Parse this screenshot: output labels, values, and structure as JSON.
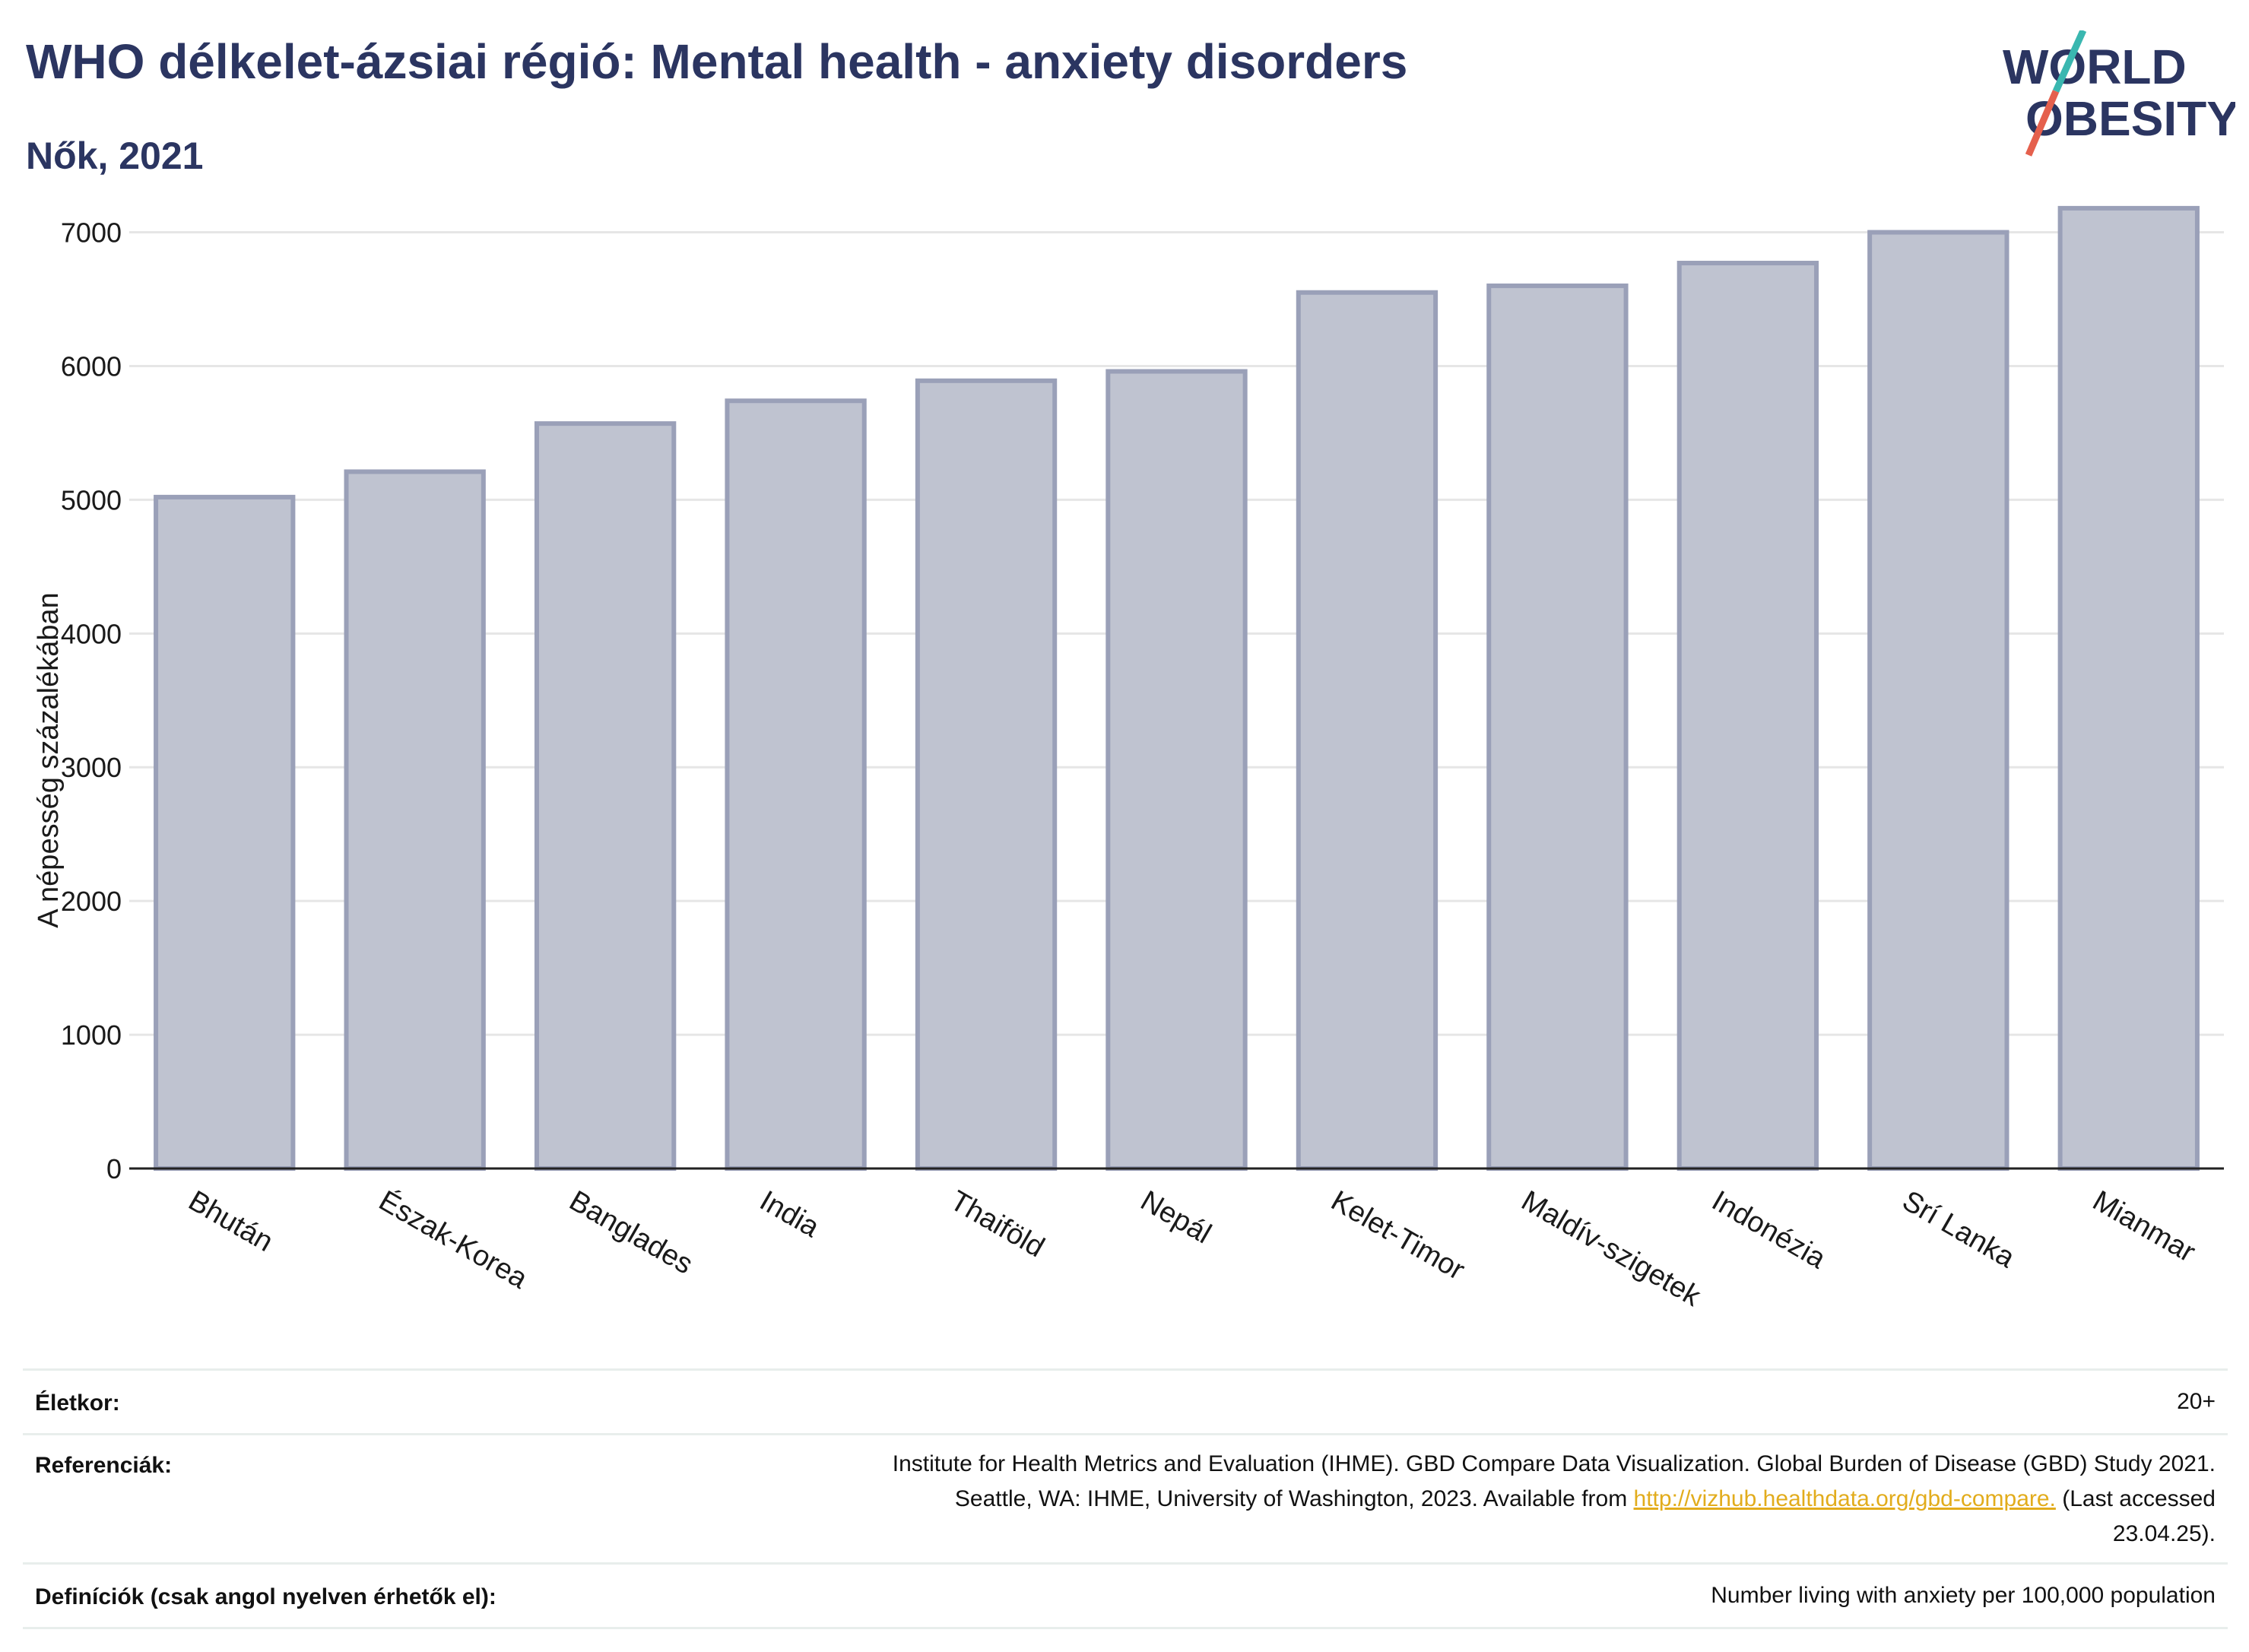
{
  "header": {
    "title": "WHO délkelet-ázsiai régió: Mental health - anxiety disorders",
    "subtitle": "Nők, 2021",
    "logo_line1": "WORLD",
    "logo_line2": "OBESITY"
  },
  "chart_data": {
    "type": "bar",
    "categories": [
      "Bhután",
      "Észak-Korea",
      "Banglades",
      "India",
      "Thaiföld",
      "Nepál",
      "Kelet-Timor",
      "Maldív-szigetek",
      "Indonézia",
      "Srí Lanka",
      "Mianmar"
    ],
    "values": [
      5020,
      5210,
      5570,
      5740,
      5890,
      5960,
      6550,
      6600,
      6770,
      7000,
      7180
    ],
    "ylabel": "A népesség százalékában",
    "xlabel": "",
    "ylim": [
      0,
      7600
    ],
    "yticks": [
      0,
      1000,
      2000,
      3000,
      4000,
      5000,
      6000,
      7000
    ],
    "grid": true,
    "bar_fill": "#bfc3d0",
    "bar_stroke": "#9aa0b8"
  },
  "meta": {
    "age_label": "Életkor:",
    "age_value": "20+",
    "ref_label": "Referenciák:",
    "ref_line1": "Institute for Health Metrics and Evaluation (IHME). GBD Compare Data Visualization. Global Burden of Disease (GBD) Study 2021.",
    "ref_line2_pre": "Seattle, WA: IHME, University of Washington, 2023. Available from ",
    "ref_link": "http://vizhub.healthdata.org/gbd-compare.",
    "ref_line2_post": " (Last accessed",
    "ref_line3": "23.04.25).",
    "def_label": "Definíciók (csak angol nyelven érhetők el):",
    "def_value": "Number living with anxiety per 100,000 population"
  },
  "colors": {
    "title": "#2b3561",
    "logo_teal": "#3ab7b0",
    "logo_red": "#e5604d",
    "link": "#e2ac1c"
  }
}
